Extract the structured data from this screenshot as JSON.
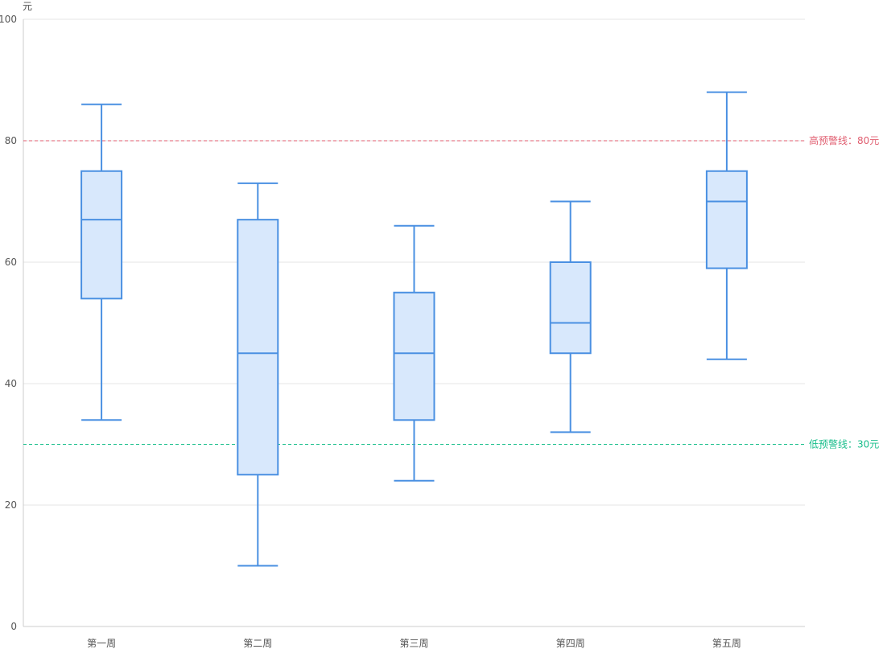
{
  "chart_data": {
    "type": "boxplot",
    "y_unit": "元",
    "ylim": [
      0,
      100
    ],
    "y_ticks": [
      0,
      20,
      40,
      60,
      80,
      100
    ],
    "grid": true,
    "categories": [
      "第一周",
      "第二周",
      "第三周",
      "第四周",
      "第五周"
    ],
    "boxes": [
      {
        "min": 34,
        "q1": 54,
        "median": 67,
        "q3": 75,
        "max": 86
      },
      {
        "min": 10,
        "q1": 25,
        "median": 45,
        "q3": 67,
        "max": 73
      },
      {
        "min": 24,
        "q1": 34,
        "median": 45,
        "q3": 55,
        "max": 66
      },
      {
        "min": 32,
        "q1": 45,
        "median": 50,
        "q3": 60,
        "max": 70
      },
      {
        "min": 44,
        "q1": 59,
        "median": 70,
        "q3": 75,
        "max": 88
      }
    ],
    "mark_lines": [
      {
        "label": "高预警线：80元",
        "value": 80,
        "color": "#e05d6f"
      },
      {
        "label": "低预警线：30元",
        "value": 30,
        "color": "#19be8b"
      }
    ],
    "colors": {
      "box_stroke": "#4a90e2",
      "box_fill": "#d8e8fc",
      "grid": "#e6e6e6",
      "axis": "#cccccc"
    }
  }
}
